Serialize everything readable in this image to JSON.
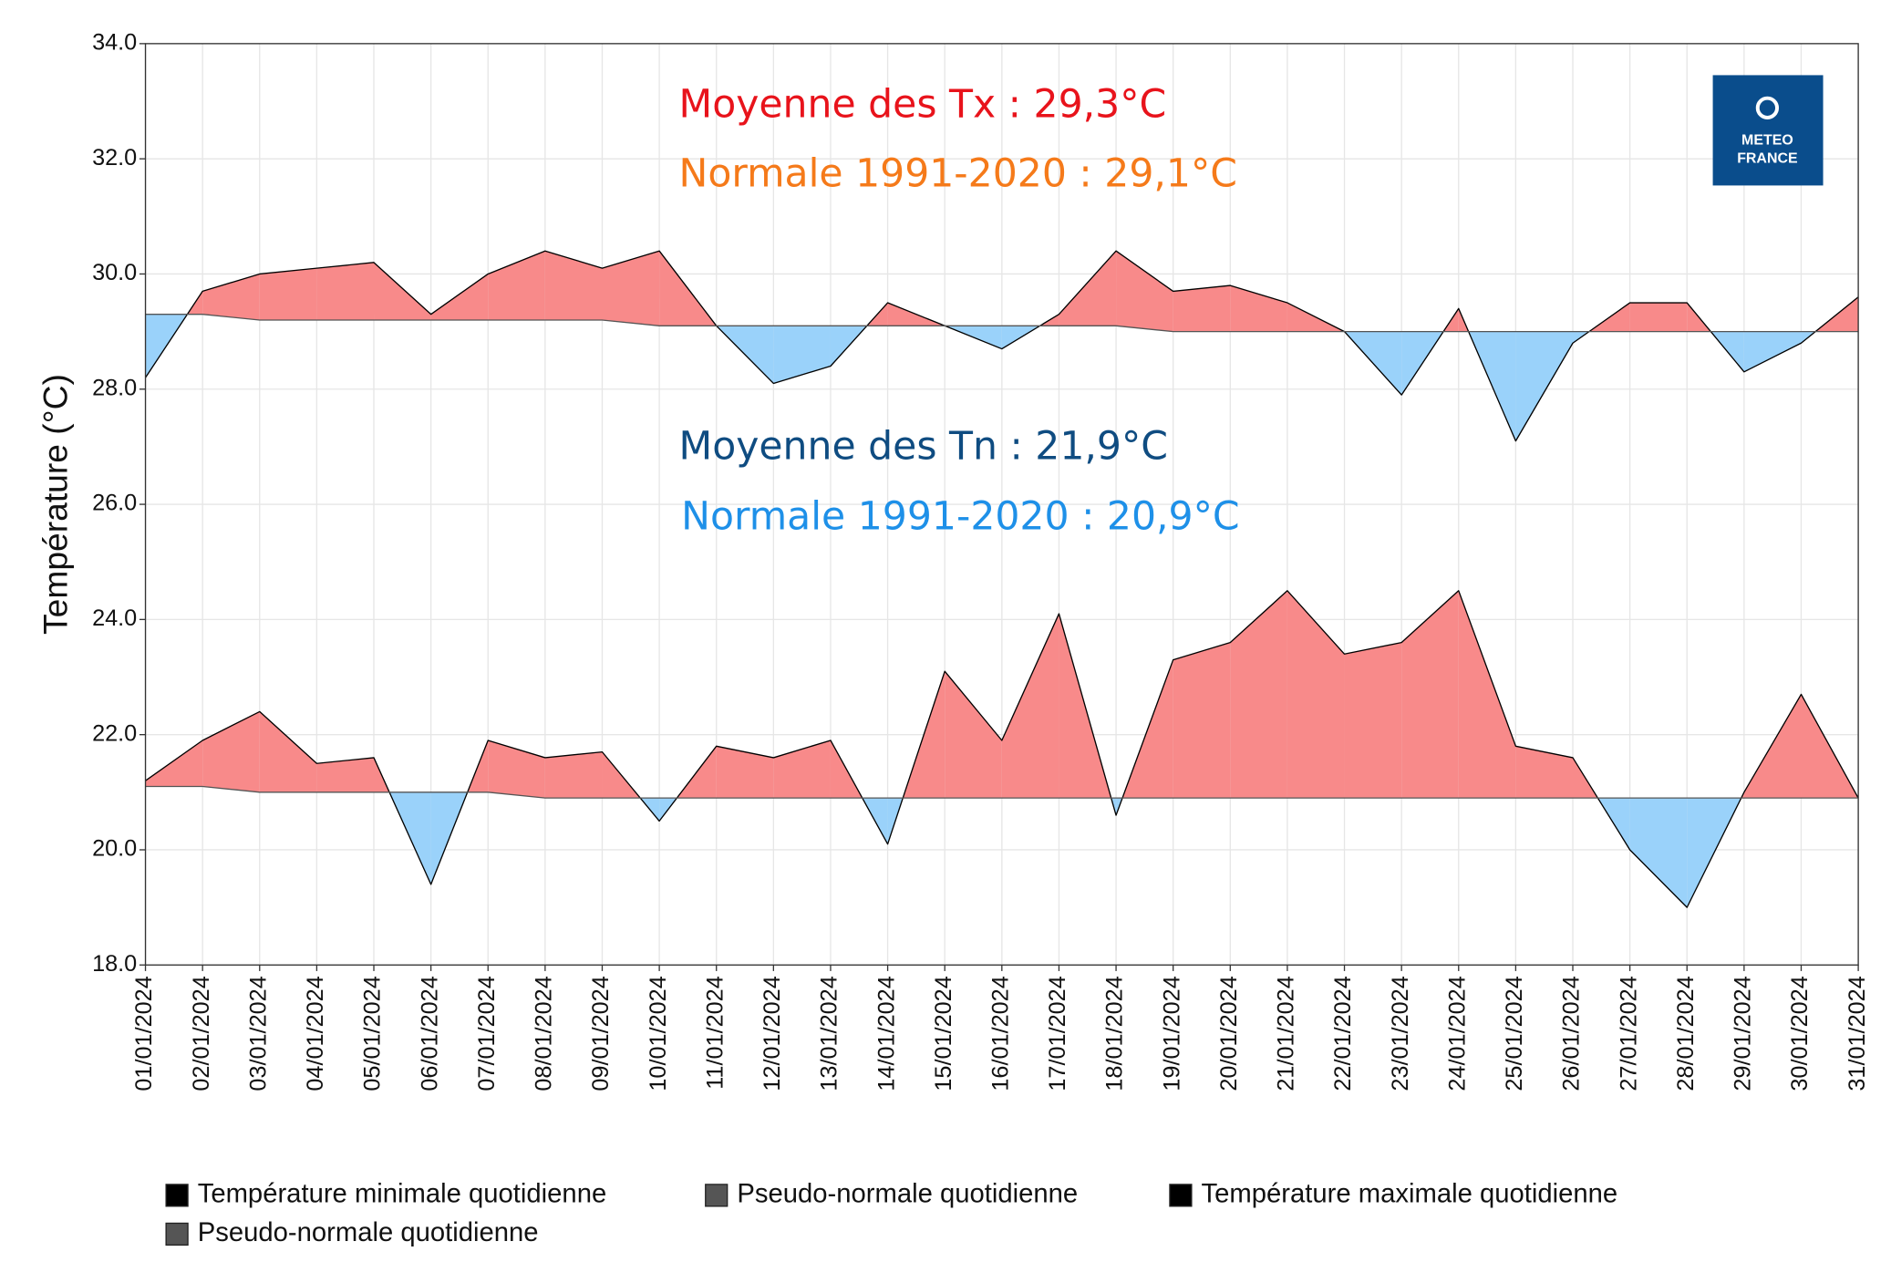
{
  "chart_data": {
    "type": "area-anomaly",
    "y_label": "Température (°C)",
    "categories": [
      "01/01/2024",
      "02/01/2024",
      "03/01/2024",
      "04/01/2024",
      "05/01/2024",
      "06/01/2024",
      "07/01/2024",
      "08/01/2024",
      "09/01/2024",
      "10/01/2024",
      "11/01/2024",
      "12/01/2024",
      "13/01/2024",
      "14/01/2024",
      "15/01/2024",
      "16/01/2024",
      "17/01/2024",
      "18/01/2024",
      "19/01/2024",
      "20/01/2024",
      "21/01/2024",
      "22/01/2024",
      "23/01/2024",
      "24/01/2024",
      "25/01/2024",
      "26/01/2024",
      "27/01/2024",
      "28/01/2024",
      "29/01/2024",
      "30/01/2024",
      "31/01/2024"
    ],
    "series": [
      {
        "name": "Température minimale quotidienne",
        "color": "#000000",
        "values": [
          21.2,
          21.9,
          22.4,
          21.5,
          21.6,
          19.4,
          21.9,
          21.6,
          21.7,
          20.5,
          21.8,
          21.6,
          21.9,
          20.1,
          23.1,
          21.9,
          24.1,
          20.6,
          23.3,
          23.6,
          24.5,
          23.4,
          23.6,
          24.5,
          21.8,
          21.6,
          20.0,
          19.0,
          21.0,
          22.7,
          20.9
        ]
      },
      {
        "name": "Pseudo-normale quotidienne",
        "color": "#555555",
        "values": [
          21.1,
          21.1,
          21.0,
          21.0,
          21.0,
          21.0,
          21.0,
          20.9,
          20.9,
          20.9,
          20.9,
          20.9,
          20.9,
          20.9,
          20.9,
          20.9,
          20.9,
          20.9,
          20.9,
          20.9,
          20.9,
          20.9,
          20.9,
          20.9,
          20.9,
          20.9,
          20.9,
          20.9,
          20.9,
          20.9,
          20.9
        ]
      },
      {
        "name": "Température maximale quotidienne",
        "color": "#000000",
        "values": [
          28.2,
          29.7,
          30.0,
          30.1,
          30.2,
          29.3,
          30.0,
          30.4,
          30.1,
          30.4,
          29.1,
          28.1,
          28.4,
          29.5,
          29.1,
          28.7,
          29.3,
          30.4,
          29.7,
          29.8,
          29.5,
          29.0,
          27.9,
          29.4,
          27.1,
          28.8,
          29.5,
          29.5,
          28.3,
          28.8,
          29.6
        ]
      },
      {
        "name": "Pseudo-normale quotidienne",
        "color": "#555555",
        "values": [
          29.3,
          29.3,
          29.2,
          29.2,
          29.2,
          29.2,
          29.2,
          29.2,
          29.2,
          29.1,
          29.1,
          29.1,
          29.1,
          29.1,
          29.1,
          29.1,
          29.1,
          29.1,
          29.0,
          29.0,
          29.0,
          29.0,
          29.0,
          29.0,
          29.0,
          29.0,
          29.0,
          29.0,
          29.0,
          29.0,
          29.0
        ]
      }
    ],
    "above_color": "#f88a8a",
    "below_color": "#9ad2fa",
    "ylim": [
      18,
      34
    ],
    "yticks": [
      {
        "value": 18,
        "label": "18.0"
      },
      {
        "value": 20,
        "label": "20.0"
      },
      {
        "value": 22,
        "label": "22.0"
      },
      {
        "value": 24,
        "label": "24.0"
      },
      {
        "value": 26,
        "label": "26.0"
      },
      {
        "value": 28,
        "label": "28.0"
      },
      {
        "value": 30,
        "label": "30.0"
      },
      {
        "value": 32,
        "label": "32.0"
      },
      {
        "value": 34,
        "label": "34.0"
      }
    ],
    "grid": true,
    "annotations": [
      {
        "text": "Moyenne des Tx : 29,3°C",
        "color": "#e8131b"
      },
      {
        "text": "Normale 1991-2020 : 29,1°C",
        "color": "#f57a1a"
      },
      {
        "text": "Moyenne des Tn : 21,9°C",
        "color": "#0f4c81"
      },
      {
        "text": "Normale 1991-2020 : 20,9°C",
        "color": "#1e90e8"
      }
    ],
    "logo": [
      "METEO",
      "FRANCE"
    ]
  }
}
